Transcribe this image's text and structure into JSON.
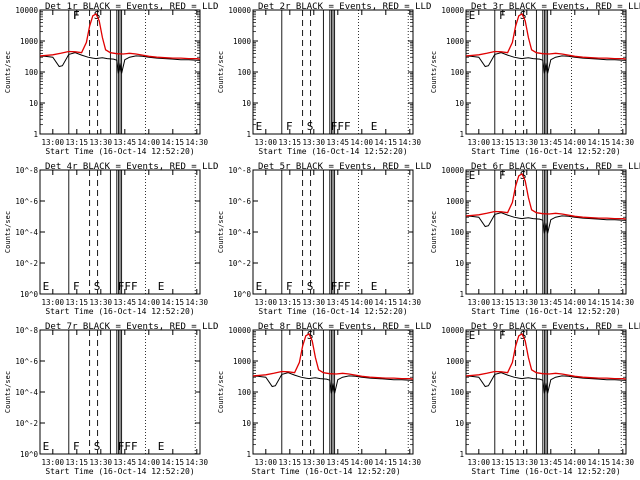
{
  "chart_data": [
    {
      "type": "line",
      "title": "Det 1r BLACK = Events, RED = LLD",
      "ylabel": "Counts/sec",
      "xlabel": "Start Time (16-Oct-14 12:52:20)",
      "x_ticks": [
        "13:00",
        "13:15",
        "13:30",
        "13:45",
        "14:00",
        "14:15",
        "14:30"
      ],
      "y_ticks": [
        "1",
        "10",
        "100",
        "1000",
        "10000"
      ],
      "ylog": true,
      "yrange": [
        1,
        10000
      ],
      "has_data": true,
      "rx_offset": 0,
      "letters": [
        "F",
        "S",
        "F"
      ],
      "series": [
        {
          "name": "Events",
          "color": "#000000",
          "x": [
            "12:52",
            "12:55",
            "13:00",
            "13:04",
            "13:06",
            "13:10",
            "13:14",
            "13:18",
            "13:22",
            "13:25",
            "13:27",
            "13:29",
            "13:31",
            "13:34",
            "13:38",
            "13:40",
            "13:41",
            "13:42",
            "13:43",
            "13:45",
            "13:48",
            "13:52",
            "13:56",
            "14:00",
            "14:05",
            "14:10",
            "14:15",
            "14:20",
            "14:25",
            "14:30",
            "14:32"
          ],
          "y": [
            320,
            320,
            300,
            150,
            160,
            370,
            420,
            350,
            300,
            280,
            270,
            280,
            290,
            270,
            260,
            240,
            90,
            200,
            90,
            250,
            300,
            330,
            320,
            300,
            280,
            270,
            260,
            250,
            250,
            240,
            240
          ]
        },
        {
          "name": "LLD",
          "color": "#e00000",
          "x": [
            "12:52",
            "12:55",
            "13:00",
            "13:05",
            "13:10",
            "13:14",
            "13:18",
            "13:21",
            "13:23",
            "13:25",
            "13:27",
            "13:29",
            "13:31",
            "13:33",
            "13:36",
            "13:40",
            "13:44",
            "13:48",
            "13:52",
            "13:56",
            "14:00",
            "14:05",
            "14:10",
            "14:15",
            "14:20",
            "14:25",
            "14:30",
            "14:32"
          ],
          "y": [
            330,
            340,
            360,
            400,
            460,
            450,
            420,
            900,
            3000,
            6500,
            7500,
            4500,
            1300,
            520,
            420,
            390,
            380,
            400,
            380,
            350,
            320,
            300,
            290,
            280,
            280,
            270,
            270,
            260
          ]
        }
      ]
    },
    {
      "type": "line",
      "title": "Det 2r BLACK = Events, RED = LLD",
      "ylabel": "Counts/sec",
      "xlabel": "Start Time (16-Oct-14 12:52:20)",
      "x_ticks": [
        "13:00",
        "13:15",
        "13:30",
        "13:45",
        "14:00",
        "14:15",
        "14:30"
      ],
      "y_ticks": [
        "1",
        "10",
        "100",
        "1000",
        "10000"
      ],
      "ylog": true,
      "yrange": [
        1,
        10000
      ],
      "has_data": false,
      "rx_offset": 0,
      "letters": [
        "E",
        "F",
        "S",
        "FFF",
        "E"
      ],
      "series": []
    },
    {
      "type": "line",
      "title": "Det 3r BLACK = Events, RED = LLD",
      "ylabel": "Counts/sec",
      "xlabel": "Start Time (16-Oct-14 12:52:20)",
      "x_ticks": [
        "13:00",
        "13:15",
        "13:30",
        "13:45",
        "14:00",
        "14:15",
        "14:30"
      ],
      "y_ticks": [
        "1",
        "10",
        "100",
        "1000",
        "10000"
      ],
      "ylog": true,
      "yrange": [
        1,
        10000
      ],
      "has_data": true,
      "rx_offset": 0,
      "letters": [
        "S",
        "F",
        "E"
      ],
      "series": [
        {
          "name": "Events",
          "color": "#000000",
          "x": [
            "12:52",
            "12:55",
            "13:00",
            "13:04",
            "13:06",
            "13:10",
            "13:14",
            "13:18",
            "13:22",
            "13:25",
            "13:27",
            "13:29",
            "13:31",
            "13:34",
            "13:38",
            "13:40",
            "13:41",
            "13:42",
            "13:43",
            "13:45",
            "13:48",
            "13:52",
            "13:56",
            "14:00",
            "14:05",
            "14:10",
            "14:15",
            "14:20",
            "14:25",
            "14:30",
            "14:32"
          ],
          "y": [
            320,
            320,
            300,
            150,
            160,
            370,
            420,
            350,
            300,
            280,
            270,
            280,
            290,
            270,
            260,
            240,
            90,
            200,
            90,
            250,
            300,
            330,
            320,
            300,
            280,
            270,
            260,
            250,
            250,
            240,
            240
          ]
        },
        {
          "name": "LLD",
          "color": "#e00000",
          "x": [
            "12:52",
            "12:55",
            "13:00",
            "13:05",
            "13:10",
            "13:14",
            "13:18",
            "13:21",
            "13:23",
            "13:25",
            "13:27",
            "13:29",
            "13:31",
            "13:33",
            "13:36",
            "13:40",
            "13:44",
            "13:48",
            "13:52",
            "13:56",
            "14:00",
            "14:05",
            "14:10",
            "14:15",
            "14:20",
            "14:25",
            "14:30",
            "14:32"
          ],
          "y": [
            330,
            340,
            360,
            400,
            460,
            450,
            420,
            900,
            3000,
            6500,
            7500,
            4500,
            1300,
            520,
            420,
            390,
            380,
            400,
            380,
            350,
            320,
            300,
            290,
            280,
            280,
            270,
            270,
            260
          ]
        }
      ]
    },
    {
      "type": "line",
      "title": "Det 4r BLACK = Events, RED = LLD",
      "ylabel": "Counts/sec",
      "xlabel": "Start Time (16-Oct-14 12:52:20)",
      "x_ticks": [
        "13:00",
        "13:15",
        "13:30",
        "13:45",
        "14:00",
        "14:15",
        "14:30"
      ],
      "y_ticks": [
        "10^0",
        "10^-2",
        "10^-4",
        "10^-6",
        "10^-8"
      ],
      "ylog": false,
      "yrange": [
        0,
        1
      ],
      "has_data": false,
      "rx_offset": 0,
      "letters": [
        "E",
        "F",
        "S",
        "FFF",
        "E"
      ],
      "series": []
    },
    {
      "type": "line",
      "title": "Det 5r BLACK = Events, RED = LLD",
      "ylabel": "Counts/sec",
      "xlabel": "Start Time (16-Oct-14 12:52:20)",
      "x_ticks": [
        "13:00",
        "13:15",
        "13:30",
        "13:45",
        "14:00",
        "14:15",
        "14:30"
      ],
      "y_ticks": [
        "10^0",
        "10^-2",
        "10^-4",
        "10^-6",
        "10^-8"
      ],
      "ylog": false,
      "yrange": [
        0,
        1
      ],
      "has_data": false,
      "rx_offset": 0,
      "letters": [
        "E",
        "F",
        "S",
        "FFF",
        "E"
      ],
      "series": []
    },
    {
      "type": "line",
      "title": "Det 6r BLACK = Events, RED = LLD",
      "ylabel": "Counts/sec",
      "xlabel": "Start Time (16-Oct-14 12:52:20)",
      "x_ticks": [
        "13:00",
        "13:15",
        "13:30",
        "13:45",
        "14:00",
        "14:15",
        "14:30"
      ],
      "y_ticks": [
        "1",
        "10",
        "100",
        "1000",
        "10000"
      ],
      "ylog": true,
      "yrange": [
        1,
        10000
      ],
      "has_data": true,
      "rx_offset": 0,
      "letters": [
        "S",
        "F",
        "E"
      ],
      "series": [
        {
          "name": "Events",
          "color": "#000000",
          "x": [
            "12:52",
            "12:55",
            "13:00",
            "13:04",
            "13:06",
            "13:10",
            "13:14",
            "13:18",
            "13:22",
            "13:25",
            "13:27",
            "13:29",
            "13:31",
            "13:34",
            "13:38",
            "13:40",
            "13:41",
            "13:42",
            "13:43",
            "13:45",
            "13:48",
            "13:52",
            "13:56",
            "14:00",
            "14:05",
            "14:10",
            "14:15",
            "14:20",
            "14:25",
            "14:30",
            "14:32"
          ],
          "y": [
            320,
            320,
            300,
            150,
            160,
            370,
            420,
            350,
            300,
            280,
            270,
            280,
            290,
            270,
            260,
            240,
            90,
            200,
            90,
            250,
            300,
            330,
            320,
            300,
            280,
            270,
            260,
            250,
            250,
            240,
            240
          ]
        },
        {
          "name": "LLD",
          "color": "#e00000",
          "x": [
            "12:52",
            "12:55",
            "13:00",
            "13:05",
            "13:10",
            "13:14",
            "13:18",
            "13:21",
            "13:23",
            "13:25",
            "13:27",
            "13:29",
            "13:31",
            "13:33",
            "13:36",
            "13:40",
            "13:44",
            "13:48",
            "13:52",
            "13:56",
            "14:00",
            "14:05",
            "14:10",
            "14:15",
            "14:20",
            "14:25",
            "14:30",
            "14:32"
          ],
          "y": [
            330,
            340,
            360,
            400,
            460,
            450,
            420,
            900,
            3000,
            6500,
            7500,
            4500,
            1300,
            520,
            420,
            390,
            380,
            400,
            380,
            350,
            320,
            300,
            290,
            280,
            280,
            270,
            270,
            260
          ]
        }
      ]
    },
    {
      "type": "line",
      "title": "Det 7r BLACK = Events, RED = LLD",
      "ylabel": "Counts/sec",
      "xlabel": "Start Time (16-Oct-14 12:52:20)",
      "x_ticks": [
        "13:00",
        "13:15",
        "13:30",
        "13:45",
        "14:00",
        "14:15",
        "14:30"
      ],
      "y_ticks": [
        "10^0",
        "10^-2",
        "10^-4",
        "10^-6",
        "10^-8"
      ],
      "ylog": false,
      "yrange": [
        0,
        1
      ],
      "has_data": false,
      "rx_offset": 0,
      "letters": [
        "E",
        "F",
        "S",
        "FFF",
        "E"
      ],
      "series": []
    },
    {
      "type": "line",
      "title": "Det 8r BLACK = Events, RED = LLD",
      "ylabel": "Counts/sec",
      "xlabel": "Start Time (16-Oct-14 12:52:20)",
      "x_ticks": [
        "13:00",
        "13:15",
        "13:30",
        "13:45",
        "14:00",
        "14:15",
        "14:30"
      ],
      "y_ticks": [
        "1",
        "10",
        "100",
        "1000",
        "10000"
      ],
      "ylog": true,
      "yrange": [
        1,
        10000
      ],
      "has_data": true,
      "rx_offset": -7,
      "letters": [
        "S"
      ],
      "series": [
        {
          "name": "Events",
          "color": "#000000",
          "x": [
            "12:52",
            "12:55",
            "13:00",
            "13:04",
            "13:06",
            "13:10",
            "13:14",
            "13:18",
            "13:22",
            "13:25",
            "13:27",
            "13:29",
            "13:31",
            "13:34",
            "13:38",
            "13:40",
            "13:41",
            "13:42",
            "13:43",
            "13:45",
            "13:48",
            "13:52",
            "13:56",
            "14:00",
            "14:05",
            "14:10",
            "14:15",
            "14:20",
            "14:25",
            "14:30",
            "14:32"
          ],
          "y": [
            320,
            320,
            300,
            150,
            160,
            370,
            420,
            350,
            300,
            280,
            270,
            280,
            290,
            270,
            260,
            240,
            90,
            200,
            90,
            250,
            300,
            330,
            320,
            300,
            280,
            270,
            260,
            250,
            250,
            240,
            240
          ]
        },
        {
          "name": "LLD",
          "color": "#e00000",
          "x": [
            "12:52",
            "12:55",
            "13:00",
            "13:05",
            "13:10",
            "13:14",
            "13:18",
            "13:21",
            "13:23",
            "13:25",
            "13:27",
            "13:29",
            "13:31",
            "13:33",
            "13:36",
            "13:40",
            "13:44",
            "13:48",
            "13:52",
            "13:56",
            "14:00",
            "14:05",
            "14:10",
            "14:15",
            "14:20",
            "14:25",
            "14:30",
            "14:32"
          ],
          "y": [
            330,
            340,
            360,
            400,
            460,
            450,
            420,
            900,
            3000,
            6500,
            7500,
            4500,
            1300,
            520,
            420,
            390,
            380,
            400,
            380,
            350,
            320,
            300,
            290,
            280,
            280,
            270,
            270,
            260
          ]
        }
      ]
    },
    {
      "type": "line",
      "title": "Det 9r BLACK = Events, RED = LLD",
      "ylabel": "Counts/sec",
      "xlabel": "Start Time (16-Oct-14 12:52:20)",
      "x_ticks": [
        "13:00",
        "13:15",
        "13:30",
        "13:45",
        "14:00",
        "14:15",
        "14:30"
      ],
      "y_ticks": [
        "1",
        "10",
        "100",
        "1000",
        "10000"
      ],
      "ylog": true,
      "yrange": [
        1,
        10000
      ],
      "has_data": true,
      "rx_offset": 0,
      "letters": [
        "S",
        "F",
        "E"
      ],
      "series": [
        {
          "name": "Events",
          "color": "#000000",
          "x": [
            "12:52",
            "12:55",
            "13:00",
            "13:04",
            "13:06",
            "13:10",
            "13:14",
            "13:18",
            "13:22",
            "13:25",
            "13:27",
            "13:29",
            "13:31",
            "13:34",
            "13:38",
            "13:40",
            "13:41",
            "13:42",
            "13:43",
            "13:45",
            "13:48",
            "13:52",
            "13:56",
            "14:00",
            "14:05",
            "14:10",
            "14:15",
            "14:20",
            "14:25",
            "14:30",
            "14:32"
          ],
          "y": [
            320,
            320,
            300,
            150,
            160,
            370,
            420,
            350,
            300,
            280,
            270,
            280,
            290,
            270,
            260,
            240,
            90,
            200,
            90,
            250,
            300,
            330,
            320,
            300,
            280,
            270,
            260,
            250,
            250,
            240,
            240
          ]
        },
        {
          "name": "LLD",
          "color": "#e00000",
          "x": [
            "12:52",
            "12:55",
            "13:00",
            "13:05",
            "13:10",
            "13:14",
            "13:18",
            "13:21",
            "13:23",
            "13:25",
            "13:27",
            "13:29",
            "13:31",
            "13:33",
            "13:36",
            "13:40",
            "13:44",
            "13:48",
            "13:52",
            "13:56",
            "14:00",
            "14:05",
            "14:10",
            "14:15",
            "14:20",
            "14:25",
            "14:30",
            "14:32"
          ],
          "y": [
            330,
            340,
            360,
            400,
            460,
            450,
            420,
            900,
            3000,
            6500,
            7500,
            4500,
            1300,
            520,
            420,
            390,
            380,
            400,
            380,
            350,
            320,
            300,
            290,
            280,
            280,
            270,
            270,
            260
          ]
        }
      ]
    }
  ]
}
